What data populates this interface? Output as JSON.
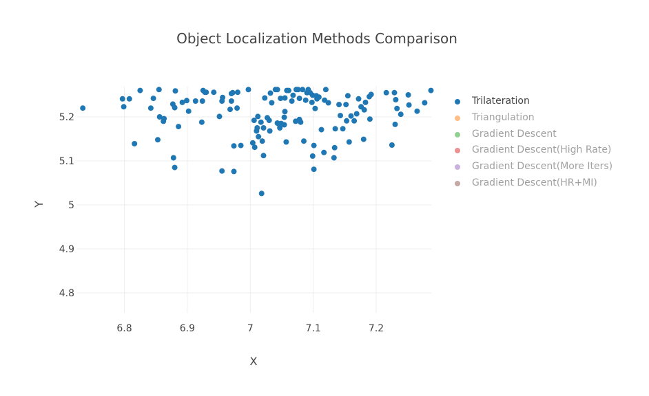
{
  "chart_data": {
    "type": "scatter",
    "title": "Object Localization Methods Comparison",
    "xlabel": "X",
    "ylabel": "Y",
    "xlim": [
      6.725,
      6.29
    ],
    "ylim": [
      4.75,
      5.26
    ],
    "x_ticks": [
      {
        "value": 6.8,
        "label": "6.8"
      },
      {
        "value": 6.9,
        "label": "6.9"
      },
      {
        "value": 7.0,
        "label": "7"
      },
      {
        "value": 7.1,
        "label": "7.1"
      },
      {
        "value": 7.2,
        "label": "7.2"
      }
    ],
    "y_ticks": [
      {
        "value": 4.8,
        "label": "4.8"
      },
      {
        "value": 4.9,
        "label": "4.9"
      },
      {
        "value": 5.0,
        "label": "5"
      },
      {
        "value": 5.1,
        "label": "5.1"
      },
      {
        "value": 5.2,
        "label": "5.2"
      }
    ],
    "grid": true,
    "legend_position": "right",
    "series": [
      {
        "name": "Trilateration",
        "color": "#1f77b4",
        "visible": true,
        "points": [
          [
            6.734,
            5.22
          ],
          [
            6.797,
            5.241
          ],
          [
            6.799,
            5.223
          ],
          [
            6.808,
            5.241
          ],
          [
            6.816,
            5.139
          ],
          [
            6.825,
            5.26
          ],
          [
            6.842,
            5.22
          ],
          [
            6.846,
            5.242
          ],
          [
            6.853,
            5.148
          ],
          [
            6.855,
            5.262
          ],
          [
            6.856,
            5.2
          ],
          [
            6.862,
            5.19
          ],
          [
            6.863,
            5.196
          ],
          [
            6.877,
            5.229
          ],
          [
            6.878,
            5.107
          ],
          [
            6.88,
            5.221
          ],
          [
            6.88,
            5.085
          ],
          [
            6.881,
            5.259
          ],
          [
            6.886,
            5.178
          ],
          [
            6.892,
            5.233
          ],
          [
            6.899,
            5.237
          ],
          [
            6.902,
            5.213
          ],
          [
            6.913,
            5.236
          ],
          [
            6.923,
            5.188
          ],
          [
            6.924,
            5.236
          ],
          [
            6.925,
            5.26
          ],
          [
            6.928,
            5.256
          ],
          [
            6.93,
            5.256
          ],
          [
            6.942,
            5.256
          ],
          [
            6.951,
            5.201
          ],
          [
            6.955,
            5.236
          ],
          [
            6.955,
            5.077
          ],
          [
            6.956,
            5.244
          ],
          [
            6.968,
            5.217
          ],
          [
            6.97,
            5.236
          ],
          [
            6.97,
            5.253
          ],
          [
            6.972,
            5.255
          ],
          [
            6.974,
            5.134
          ],
          [
            6.974,
            5.076
          ],
          [
            6.979,
            5.22
          ],
          [
            6.98,
            5.256
          ],
          [
            6.985,
            5.135
          ],
          [
            6.997,
            5.262
          ],
          [
            7.004,
            5.141
          ],
          [
            7.006,
            5.192
          ],
          [
            7.007,
            5.131
          ],
          [
            7.01,
            5.168
          ],
          [
            7.011,
            5.175
          ],
          [
            7.012,
            5.201
          ],
          [
            7.013,
            5.155
          ],
          [
            7.017,
            5.188
          ],
          [
            7.018,
            5.026
          ],
          [
            7.019,
            5.145
          ],
          [
            7.021,
            5.112
          ],
          [
            7.021,
            5.175
          ],
          [
            7.023,
            5.243
          ],
          [
            7.027,
            5.198
          ],
          [
            7.03,
            5.192
          ],
          [
            7.031,
            5.168
          ],
          [
            7.032,
            5.254
          ],
          [
            7.034,
            5.232
          ],
          [
            7.04,
            5.262
          ],
          [
            7.043,
            5.186
          ],
          [
            7.043,
            5.262
          ],
          [
            7.045,
            5.184
          ],
          [
            7.047,
            5.175
          ],
          [
            7.048,
            5.242
          ],
          [
            7.049,
            5.185
          ],
          [
            7.054,
            5.199
          ],
          [
            7.054,
            5.182
          ],
          [
            7.055,
            5.212
          ],
          [
            7.055,
            5.243
          ],
          [
            7.057,
            5.143
          ],
          [
            7.058,
            5.26
          ],
          [
            7.061,
            5.26
          ],
          [
            7.066,
            5.236
          ],
          [
            7.068,
            5.249
          ],
          [
            7.072,
            5.19
          ],
          [
            7.073,
            5.262
          ],
          [
            7.076,
            5.262
          ],
          [
            7.078,
            5.194
          ],
          [
            7.078,
            5.242
          ],
          [
            7.08,
            5.188
          ],
          [
            7.083,
            5.262
          ],
          [
            7.085,
            5.145
          ],
          [
            7.088,
            5.238
          ],
          [
            7.09,
            5.255
          ],
          [
            7.092,
            5.262
          ],
          [
            7.095,
            5.255
          ],
          [
            7.098,
            5.233
          ],
          [
            7.099,
            5.249
          ],
          [
            7.099,
            5.111
          ],
          [
            7.101,
            5.081
          ],
          [
            7.101,
            5.135
          ],
          [
            7.103,
            5.219
          ],
          [
            7.105,
            5.248
          ],
          [
            7.106,
            5.241
          ],
          [
            7.109,
            5.245
          ],
          [
            7.113,
            5.171
          ],
          [
            7.117,
            5.119
          ],
          [
            7.118,
            5.238
          ],
          [
            7.12,
            5.262
          ],
          [
            7.124,
            5.232
          ],
          [
            7.133,
            5.107
          ],
          [
            7.134,
            5.13
          ],
          [
            7.135,
            5.173
          ],
          [
            7.141,
            5.228
          ],
          [
            7.143,
            5.203
          ],
          [
            7.147,
            5.173
          ],
          [
            7.152,
            5.228
          ],
          [
            7.153,
            5.191
          ],
          [
            7.155,
            5.248
          ],
          [
            7.157,
            5.143
          ],
          [
            7.16,
            5.202
          ],
          [
            7.165,
            5.191
          ],
          [
            7.169,
            5.207
          ],
          [
            7.172,
            5.241
          ],
          [
            7.176,
            5.223
          ],
          [
            7.18,
            5.149
          ],
          [
            7.181,
            5.216
          ],
          [
            7.183,
            5.233
          ],
          [
            7.189,
            5.246
          ],
          [
            7.19,
            5.195
          ],
          [
            7.192,
            5.251
          ],
          [
            7.216,
            5.255
          ],
          [
            7.225,
            5.136
          ],
          [
            7.229,
            5.255
          ],
          [
            7.23,
            5.183
          ],
          [
            7.231,
            5.239
          ],
          [
            7.233,
            5.219
          ],
          [
            7.239,
            5.206
          ],
          [
            7.251,
            5.25
          ],
          [
            7.252,
            5.227
          ],
          [
            7.265,
            5.213
          ],
          [
            7.277,
            5.232
          ],
          [
            7.287,
            5.26
          ]
        ]
      },
      {
        "name": "Triangulation",
        "color": "#ff7f0e",
        "visible": false,
        "points": []
      },
      {
        "name": "Gradient Descent",
        "color": "#2ca02c",
        "visible": false,
        "points": []
      },
      {
        "name": "Gradient Descent(High Rate)",
        "color": "#d62728",
        "visible": false,
        "points": []
      },
      {
        "name": "Gradient Descent(More Iters)",
        "color": "#9467bd",
        "visible": false,
        "points": []
      },
      {
        "name": "Gradient Descent(HR+MI)",
        "color": "#8c564b",
        "visible": false,
        "points": []
      }
    ]
  }
}
